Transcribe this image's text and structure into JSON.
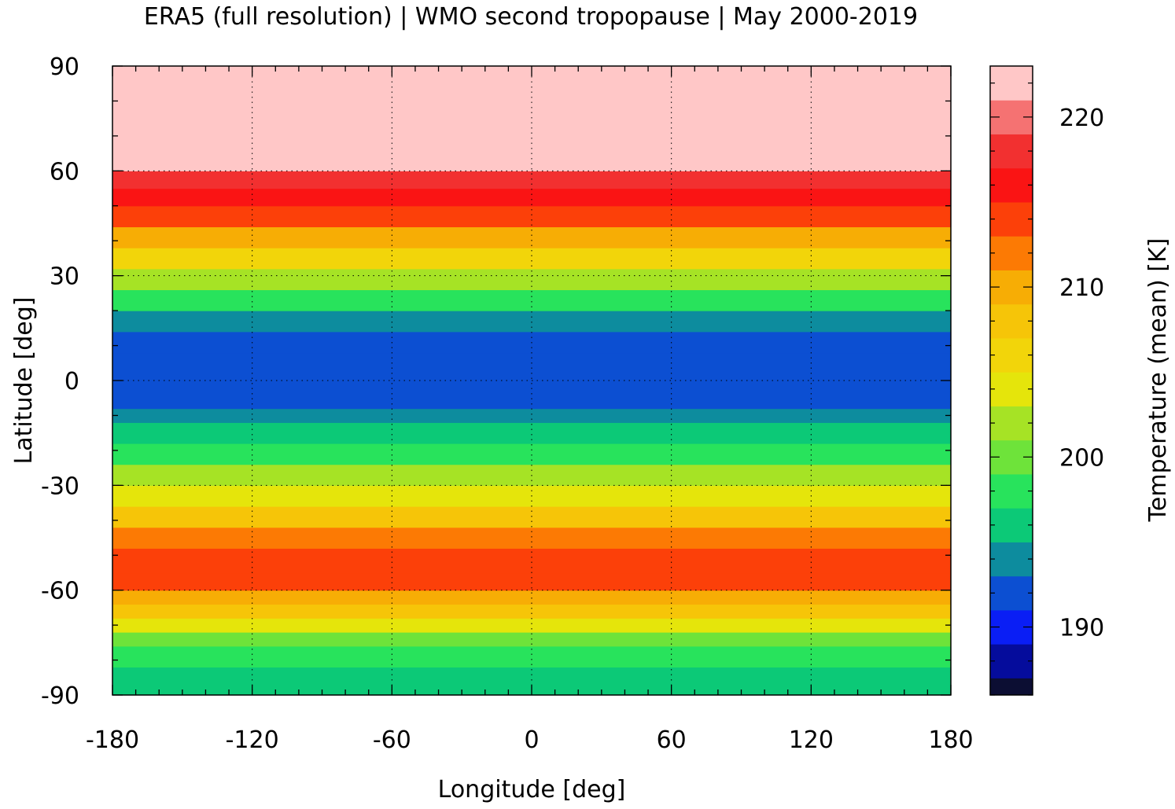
{
  "chart_data": {
    "type": "heatmap",
    "title": "ERA5 (full resolution) | WMO second tropopause | May 2000-2019",
    "xlabel": "Longitude [deg]",
    "ylabel": "Latitude [deg]",
    "xlim": [
      -180,
      180
    ],
    "ylim": [
      -90,
      90
    ],
    "xticks": [
      "-180",
      "-120",
      "-60",
      "0",
      "60",
      "120",
      "180"
    ],
    "yticks": [
      "90",
      "60",
      "30",
      "0",
      "-30",
      "-60",
      "-90"
    ],
    "grid": true,
    "colorbar": {
      "label": "Temperature (mean) [K]",
      "range": [
        186,
        223
      ],
      "ticks": [
        "190",
        "200",
        "210",
        "220"
      ],
      "levels": [
        {
          "min": 186,
          "max": 187,
          "color": "#0c0e33"
        },
        {
          "min": 187,
          "max": 189,
          "color": "#050c9c"
        },
        {
          "min": 189,
          "max": 191,
          "color": "#0a1ef5"
        },
        {
          "min": 191,
          "max": 193,
          "color": "#0c4fd2"
        },
        {
          "min": 193,
          "max": 195,
          "color": "#0d8c9e"
        },
        {
          "min": 195,
          "max": 197,
          "color": "#0cc977"
        },
        {
          "min": 197,
          "max": 199,
          "color": "#28e35c"
        },
        {
          "min": 199,
          "max": 201,
          "color": "#6ee33a"
        },
        {
          "min": 201,
          "max": 203,
          "color": "#a6e325"
        },
        {
          "min": 203,
          "max": 205,
          "color": "#e5e50b"
        },
        {
          "min": 205,
          "max": 207,
          "color": "#f2d50a"
        },
        {
          "min": 207,
          "max": 209,
          "color": "#f6c508"
        },
        {
          "min": 209,
          "max": 211,
          "color": "#f7ad05"
        },
        {
          "min": 211,
          "max": 213,
          "color": "#fc7a04"
        },
        {
          "min": 213,
          "max": 215,
          "color": "#fc4009"
        },
        {
          "min": 215,
          "max": 217,
          "color": "#fa1414"
        },
        {
          "min": 217,
          "max": 219,
          "color": "#f23030"
        },
        {
          "min": 219,
          "max": 221,
          "color": "#f57272"
        },
        {
          "min": 221,
          "max": 223,
          "color": "#ffc7c7"
        }
      ]
    },
    "zonal_profile": [
      {
        "lat": -90,
        "temp": 196
      },
      {
        "lat": -82,
        "temp": 197
      },
      {
        "lat": -76,
        "temp": 199
      },
      {
        "lat": -72,
        "temp": 201
      },
      {
        "lat": -68,
        "temp": 205
      },
      {
        "lat": -64,
        "temp": 209
      },
      {
        "lat": -60,
        "temp": 212
      },
      {
        "lat": -55,
        "temp": 214
      },
      {
        "lat": -48,
        "temp": 213
      },
      {
        "lat": -42,
        "temp": 210
      },
      {
        "lat": -36,
        "temp": 206
      },
      {
        "lat": -30,
        "temp": 203
      },
      {
        "lat": -24,
        "temp": 200
      },
      {
        "lat": -18,
        "temp": 197
      },
      {
        "lat": -12,
        "temp": 194
      },
      {
        "lat": -8,
        "temp": 192
      },
      {
        "lat": 0,
        "temp": 192
      },
      {
        "lat": 8,
        "temp": 192
      },
      {
        "lat": 14,
        "temp": 193
      },
      {
        "lat": 20,
        "temp": 196
      },
      {
        "lat": 26,
        "temp": 199
      },
      {
        "lat": 32,
        "temp": 204
      },
      {
        "lat": 38,
        "temp": 208
      },
      {
        "lat": 44,
        "temp": 212
      },
      {
        "lat": 50,
        "temp": 215
      },
      {
        "lat": 55,
        "temp": 217
      },
      {
        "lat": 60,
        "temp": 220
      },
      {
        "lat": 66,
        "temp": 222
      },
      {
        "lat": 90,
        "temp": 222
      }
    ]
  }
}
